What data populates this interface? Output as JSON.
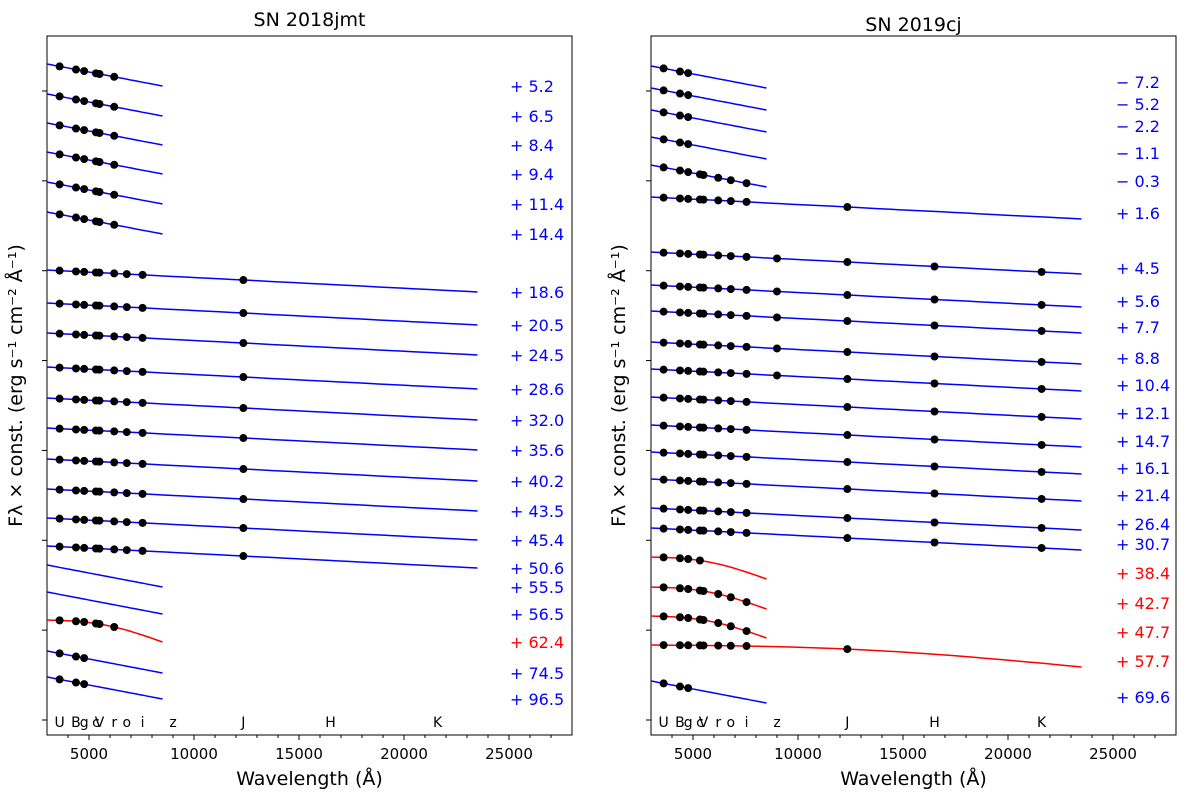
{
  "figure": {
    "ylabel": "Fλ × const. (erg s⁻¹ cm⁻² Å⁻¹)"
  },
  "chart_data": [
    {
      "type": "scatter",
      "title": "SN 2018jmt",
      "xlabel": "Wavelength (Å)",
      "ylabel": "Fλ × const. (erg s⁻¹ cm⁻² Å⁻¹)",
      "xlim": [
        3000,
        28000
      ],
      "xticks": [
        5000,
        10000,
        15000,
        20000,
        25000
      ],
      "filters": [
        {
          "name": "U",
          "wl": 3600
        },
        {
          "name": "B",
          "wl": 4380
        },
        {
          "name": "g",
          "wl": 4770
        },
        {
          "name": "c",
          "wl": 5330
        },
        {
          "name": "V",
          "wl": 5500
        },
        {
          "name": "r",
          "wl": 6200
        },
        {
          "name": "o",
          "wl": 6800
        },
        {
          "name": "i",
          "wl": 7550
        },
        {
          "name": "z",
          "wl": 9000
        },
        {
          "name": "J",
          "wl": 12350
        },
        {
          "name": "H",
          "wl": 16500
        },
        {
          "name": "K",
          "wl": 21600
        }
      ],
      "series": [
        {
          "epoch": "+ 5.2",
          "color": "blue",
          "n_points": 6
        },
        {
          "epoch": "+ 6.5",
          "color": "blue",
          "n_points": 6
        },
        {
          "epoch": "+ 8.4",
          "color": "blue",
          "n_points": 6
        },
        {
          "epoch": "+ 9.4",
          "color": "blue",
          "n_points": 6
        },
        {
          "epoch": "+ 11.4",
          "color": "blue",
          "n_points": 6
        },
        {
          "epoch": "+ 14.4",
          "color": "blue",
          "n_points": 6
        },
        {
          "epoch": "+ 18.6",
          "color": "blue",
          "n_points": 9
        },
        {
          "epoch": "+ 20.5",
          "color": "blue",
          "n_points": 9
        },
        {
          "epoch": "+ 24.5",
          "color": "blue",
          "n_points": 9
        },
        {
          "epoch": "+ 28.6",
          "color": "blue",
          "n_points": 9
        },
        {
          "epoch": "+ 32.0",
          "color": "blue",
          "n_points": 9
        },
        {
          "epoch": "+ 35.6",
          "color": "blue",
          "n_points": 9
        },
        {
          "epoch": "+ 40.2",
          "color": "blue",
          "n_points": 9
        },
        {
          "epoch": "+ 43.5",
          "color": "blue",
          "n_points": 9
        },
        {
          "epoch": "+ 45.4",
          "color": "blue",
          "n_points": 9
        },
        {
          "epoch": "+ 50.6",
          "color": "blue",
          "n_points": 9
        },
        {
          "epoch": "+ 55.5",
          "color": "blue",
          "n_points": 0
        },
        {
          "epoch": "+ 56.5",
          "color": "blue",
          "n_points": 0
        },
        {
          "epoch": "+ 62.4",
          "color": "red",
          "n_points": 6
        },
        {
          "epoch": "+ 74.5",
          "color": "blue",
          "n_points": 3
        },
        {
          "epoch": "+ 96.5",
          "color": "blue",
          "n_points": 3
        }
      ]
    },
    {
      "type": "scatter",
      "title": "SN 2019cj",
      "xlabel": "Wavelength (Å)",
      "ylabel": "Fλ × const. (erg s⁻¹ cm⁻² Å⁻¹)",
      "xlim": [
        3000,
        28000
      ],
      "xticks": [
        5000,
        10000,
        15000,
        20000,
        25000
      ],
      "filters": [
        {
          "name": "U",
          "wl": 3600
        },
        {
          "name": "B",
          "wl": 4380
        },
        {
          "name": "g",
          "wl": 4770
        },
        {
          "name": "c",
          "wl": 5330
        },
        {
          "name": "V",
          "wl": 5500
        },
        {
          "name": "r",
          "wl": 6200
        },
        {
          "name": "o",
          "wl": 6800
        },
        {
          "name": "i",
          "wl": 7550
        },
        {
          "name": "z",
          "wl": 9000
        },
        {
          "name": "J",
          "wl": 12350
        },
        {
          "name": "H",
          "wl": 16500
        },
        {
          "name": "K",
          "wl": 21600
        }
      ],
      "series": [
        {
          "epoch": "− 7.2",
          "color": "blue",
          "n_points": 3
        },
        {
          "epoch": "− 5.2",
          "color": "blue",
          "n_points": 3
        },
        {
          "epoch": "− 2.2",
          "color": "blue",
          "n_points": 3
        },
        {
          "epoch": "− 1.1",
          "color": "blue",
          "n_points": 3
        },
        {
          "epoch": "− 0.3",
          "color": "blue",
          "n_points": 8
        },
        {
          "epoch": "+ 1.6",
          "color": "blue",
          "n_points": 9
        },
        {
          "epoch": "+ 4.5",
          "color": "blue",
          "n_points": 12
        },
        {
          "epoch": "+ 5.6",
          "color": "blue",
          "n_points": 12
        },
        {
          "epoch": "+ 7.7",
          "color": "blue",
          "n_points": 12
        },
        {
          "epoch": "+ 8.8",
          "color": "blue",
          "n_points": 12
        },
        {
          "epoch": "+ 10.4",
          "color": "blue",
          "n_points": 12
        },
        {
          "epoch": "+ 12.1",
          "color": "blue",
          "n_points": 11
        },
        {
          "epoch": "+ 14.7",
          "color": "blue",
          "n_points": 11
        },
        {
          "epoch": "+ 16.1",
          "color": "blue",
          "n_points": 11
        },
        {
          "epoch": "+ 21.4",
          "color": "blue",
          "n_points": 11
        },
        {
          "epoch": "+ 26.4",
          "color": "blue",
          "n_points": 11
        },
        {
          "epoch": "+ 30.7",
          "color": "blue",
          "n_points": 11
        },
        {
          "epoch": "+ 38.4",
          "color": "red",
          "n_points": 4
        },
        {
          "epoch": "+ 42.7",
          "color": "red",
          "n_points": 8
        },
        {
          "epoch": "+ 47.7",
          "color": "red",
          "n_points": 8
        },
        {
          "epoch": "+ 57.7",
          "color": "red",
          "n_points": 9
        },
        {
          "epoch": "+ 69.6",
          "color": "blue",
          "n_points": 3
        }
      ]
    }
  ]
}
